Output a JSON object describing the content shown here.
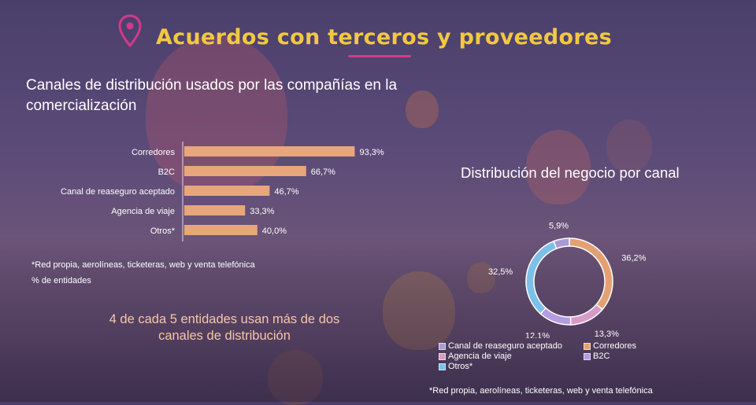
{
  "page": {
    "title": "Acuerdos con terceros y proveedores",
    "colors": {
      "title": "#f2c842",
      "accent": "#d23a8a",
      "bar": "#e7a77a",
      "callout": "#f4c7a6"
    },
    "icons": {
      "title_icon": "map-pin-icon"
    }
  },
  "left_panel": {
    "heading": "Canales de distribución usados por las compañías en la comercialización",
    "footnote": "*Red propia, aerolíneas, ticketeras, web y venta telefónica",
    "unit_note": "% de entidades",
    "callout": "4 de cada 5 entidades usan más de dos canales de distribución"
  },
  "right_panel": {
    "heading": "Distribución del negocio por canal",
    "footnote": "*Red propia, aerolíneas, ticketeras, web y venta telefónica"
  },
  "chart_data": [
    {
      "type": "bar",
      "orientation": "horizontal",
      "categories": [
        "Corredores",
        "B2C",
        "Canal de reaseguro aceptado",
        "Agencia de viaje",
        "Otros*"
      ],
      "values": [
        93.3,
        66.7,
        46.7,
        33.3,
        40.0
      ],
      "value_labels": [
        "93,3%",
        "66,7%",
        "46,7%",
        "33,3%",
        "40,0%"
      ],
      "xlim": [
        0,
        100
      ],
      "color": "#e7a77a"
    },
    {
      "type": "pie",
      "donut": true,
      "slices": [
        {
          "label": "Corredores",
          "value": 36.2,
          "value_label": "36,2%",
          "color": "#e3a173"
        },
        {
          "label": "Agencia de viaje",
          "value": 13.3,
          "value_label": "13,3%",
          "color": "#d69bc6"
        },
        {
          "label": "B2C",
          "value": 12.1,
          "value_label": "12,1%",
          "color": "#b59be0"
        },
        {
          "label": "Otros*",
          "value": 32.5,
          "value_label": "32,5%",
          "color": "#7cc0ea"
        },
        {
          "label": "Canal de reaseguro aceptado",
          "value": 5.9,
          "value_label": "5,9%",
          "color": "#a79bd6"
        }
      ],
      "legend": {
        "placement": "bottom",
        "entries": [
          "Canal de reaseguro aceptado",
          "Corredores",
          "Agencia de viaje",
          "B2C",
          "Otros*"
        ]
      }
    }
  ]
}
